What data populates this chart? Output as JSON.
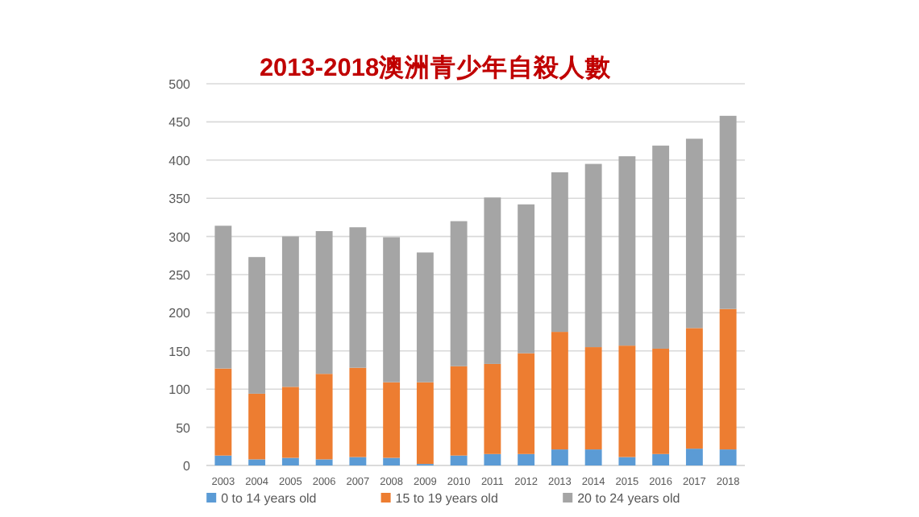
{
  "chart_data": {
    "type": "bar",
    "title": "2013-2018澳洲青少年自殺人數",
    "stacked": true,
    "categories": [
      "2003",
      "2004",
      "2005",
      "2006",
      "2007",
      "2008",
      "2009",
      "2010",
      "2011",
      "2012",
      "2013",
      "2014",
      "2015",
      "2016",
      "2017",
      "2018"
    ],
    "series": [
      {
        "name": "0 to 14 years old",
        "color": "#5b9bd5",
        "values": [
          13,
          8,
          10,
          8,
          11,
          10,
          2,
          13,
          15,
          15,
          21,
          21,
          11,
          15,
          22,
          21
        ]
      },
      {
        "name": "15 to 19 years old",
        "color": "#ed7d31",
        "values": [
          114,
          86,
          93,
          112,
          117,
          99,
          107,
          117,
          118,
          132,
          154,
          134,
          146,
          138,
          158,
          184
        ]
      },
      {
        "name": "20 to 24 years old",
        "color": "#a5a5a5",
        "values": [
          187,
          179,
          197,
          187,
          184,
          190,
          170,
          190,
          218,
          195,
          209,
          240,
          248,
          266,
          248,
          253
        ]
      }
    ],
    "ylim": [
      0,
      500
    ],
    "yticks": [
      0,
      50,
      100,
      150,
      200,
      250,
      300,
      350,
      400,
      450,
      500
    ],
    "grid": "y",
    "legend": "bottom"
  }
}
